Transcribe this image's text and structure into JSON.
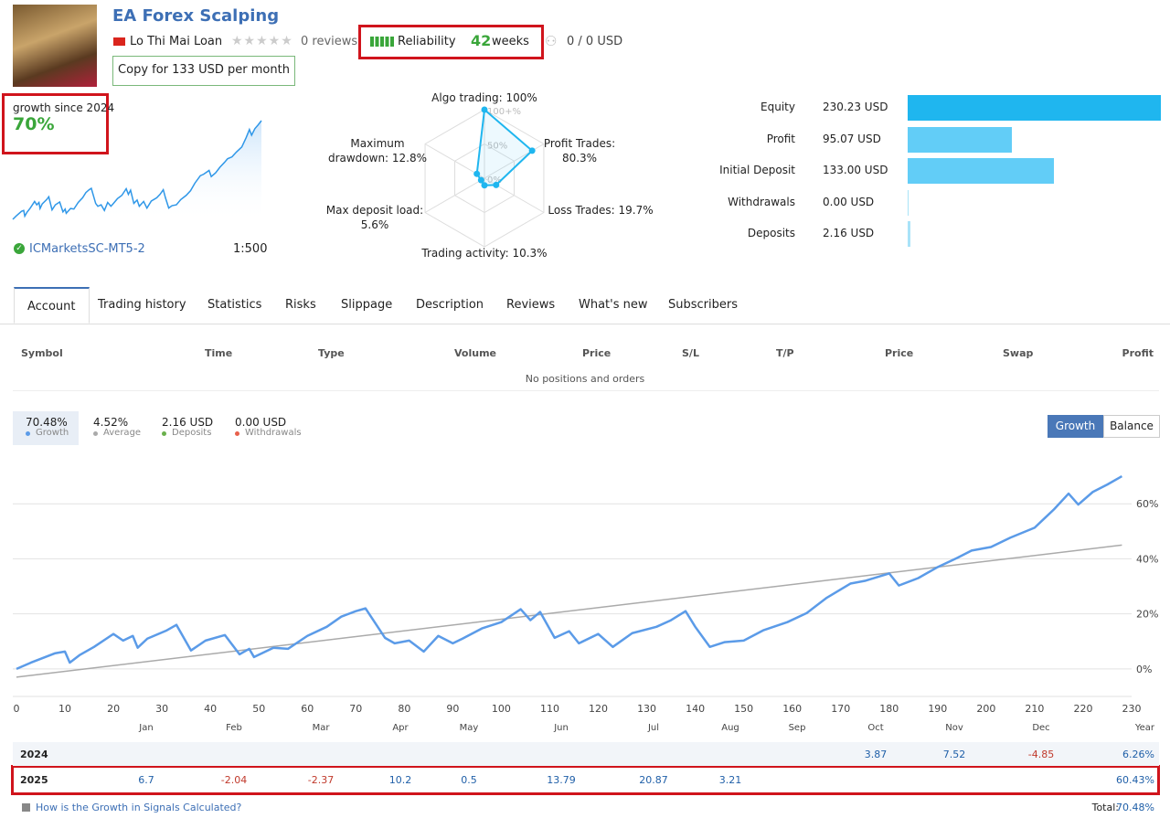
{
  "header": {
    "title": "EA Forex Scalping",
    "author": "Lo Thi Mai Loan",
    "reviews": "0 reviews",
    "reliability": "Reliability",
    "weeks": "42",
    "weeks_unit": "weeks",
    "subscribers": "0 / 0 USD",
    "copy_button": "Copy for 133 USD per month"
  },
  "growth_box": {
    "label": "growth since 2024",
    "value": "70%",
    "broker": "ICMarketsSC-MT5-2",
    "leverage": "1:500"
  },
  "radar": {
    "axes": [
      {
        "label": "Algo trading: 100%",
        "value": 100
      },
      {
        "label": "Profit Trades: 80.3%",
        "value": 80.3
      },
      {
        "label": "Loss Trades: 19.7%",
        "value": 19.7
      },
      {
        "label": "Trading activity: 10.3%",
        "value": 10.3
      },
      {
        "label": "Max deposit load: 5.6%",
        "value": 5.6
      },
      {
        "label": "Maximum drawdown: 12.8%",
        "value": 12.8
      }
    ],
    "rings": [
      {
        "value": 100,
        "label": "100+%"
      },
      {
        "value": 50,
        "label": "50%"
      },
      {
        "value": 0,
        "label": "0%"
      }
    ]
  },
  "balance_bars": {
    "categories": [
      "Equity",
      "Profit",
      "Initial Deposit",
      "Withdrawals",
      "Deposits"
    ],
    "values": [
      230.23,
      95.07,
      133.0,
      0.0,
      2.16
    ],
    "value_labels": [
      "230.23 USD",
      "95.07 USD",
      "133.00 USD",
      "0.00 USD",
      "2.16 USD"
    ],
    "colors": [
      "#1fb6ef",
      "#62cdf7",
      "#62cdf7",
      "#a9e3f8",
      "#a9e3f8"
    ]
  },
  "tabs": [
    "Account",
    "Trading history",
    "Statistics",
    "Risks",
    "Slippage",
    "Description",
    "Reviews",
    "What's new",
    "Subscribers"
  ],
  "positions_table": {
    "columns": [
      "Symbol",
      "Time",
      "Type",
      "Volume",
      "Price",
      "S/L",
      "T/P",
      "Price",
      "Swap",
      "Profit"
    ],
    "empty": "No positions and orders"
  },
  "summary": [
    {
      "value": 70.48,
      "value_label": "70.48%",
      "name": "Growth",
      "color": "#5b9be8"
    },
    {
      "value": 4.52,
      "value_label": "4.52%",
      "name": "Average",
      "color": "#aaaaaa"
    },
    {
      "value": 2.16,
      "value_label": "2.16 USD",
      "name": "Deposits",
      "color": "#6ab04c"
    },
    {
      "value": 0.0,
      "value_label": "0.00 USD",
      "name": "Withdrawals",
      "color": "#e8604c"
    }
  ],
  "chart_buttons": [
    "Growth",
    "Balance"
  ],
  "growth_chart": {
    "type": "line",
    "xlim": [
      0,
      230
    ],
    "xticks": [
      0,
      10,
      20,
      30,
      40,
      50,
      60,
      70,
      80,
      90,
      100,
      110,
      120,
      130,
      140,
      150,
      160,
      170,
      180,
      190,
      200,
      210,
      220,
      230
    ],
    "ylim": [
      -10,
      77
    ],
    "yticks": [
      {
        "value": 0,
        "label": "0%"
      },
      {
        "value": 20,
        "label": "20%"
      },
      {
        "value": 40,
        "label": "40%"
      },
      {
        "value": 60,
        "label": "60%"
      }
    ],
    "grid": true,
    "color": "#5b9be8",
    "x": [
      0,
      3,
      8,
      10,
      11,
      13,
      16,
      20,
      22,
      24,
      25,
      27,
      31,
      33,
      36,
      39,
      43,
      46,
      48,
      49,
      53,
      56,
      60,
      64,
      67,
      70,
      72,
      76,
      78,
      81,
      84,
      87,
      90,
      92,
      96,
      100,
      104,
      106,
      108,
      111,
      114,
      116,
      120,
      123,
      127,
      132,
      135,
      138,
      140,
      143,
      146,
      150,
      154,
      159,
      163,
      167,
      172,
      175,
      180,
      182,
      186,
      190,
      194,
      197,
      201,
      205,
      210,
      214,
      217,
      219,
      222,
      225,
      228
    ],
    "values": [
      0,
      2.3,
      5.7,
      6.3,
      2.3,
      5,
      8,
      12.7,
      10.3,
      12,
      7.7,
      11,
      14,
      16,
      6.7,
      10.3,
      12.3,
      5.3,
      7.3,
      4.3,
      7.7,
      7.3,
      12,
      15.3,
      19,
      21,
      22,
      11.3,
      9.3,
      10.3,
      6.3,
      12,
      9.3,
      11,
      14.7,
      17,
      21.7,
      17.7,
      20.7,
      11.3,
      13.7,
      9.3,
      12.7,
      8,
      13,
      15.3,
      17.7,
      21,
      15.3,
      8,
      9.7,
      10.3,
      14,
      17,
      20.3,
      25.7,
      31,
      32,
      34.7,
      30.3,
      33,
      37,
      40.3,
      43,
      44.3,
      47.7,
      51.3,
      58,
      63.7,
      59.7,
      64.3,
      67,
      70
    ],
    "trend": {
      "x": [
        0,
        228
      ],
      "values": [
        -3,
        45
      ],
      "color": "#aaaaaa"
    }
  },
  "monthly": {
    "months": [
      "Jan",
      "Feb",
      "Mar",
      "Apr",
      "May",
      "Jun",
      "Jul",
      "Aug",
      "Sep",
      "Oct",
      "Nov",
      "Dec"
    ],
    "year_header": "Year",
    "rows": [
      {
        "year": 2024,
        "values": [
          null,
          null,
          null,
          null,
          null,
          null,
          null,
          null,
          null,
          3.87,
          7.52,
          -4.85
        ],
        "total": 6.26,
        "total_label": "6.26%"
      },
      {
        "year": 2025,
        "values": [
          6.7,
          -2.04,
          -2.37,
          10.2,
          0.5,
          13.79,
          20.87,
          3.21,
          null,
          null,
          null,
          null
        ],
        "total": 60.43,
        "total_label": "60.43%"
      }
    ]
  },
  "footer": {
    "link": "How is the Growth in Signals Calculated?",
    "total_label": "Total:",
    "total": 70.48,
    "total_value_label": "70.48%"
  }
}
